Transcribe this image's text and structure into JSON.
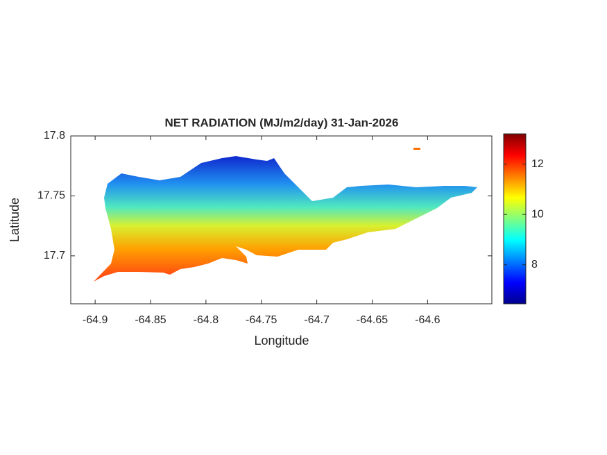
{
  "chart_data": {
    "type": "map",
    "title": "NET RADIATION (MJ/m2/day) 31-Jan-2026",
    "xlabel": "Longitude",
    "ylabel": "Latitude",
    "xlim": [
      -64.922,
      -64.542
    ],
    "xticks": [
      -64.9,
      -64.85,
      -64.8,
      -64.75,
      -64.7,
      -64.65,
      -64.6
    ],
    "ylim": [
      17.66,
      17.8
    ],
    "yticks": [
      17.7,
      17.75,
      17.8
    ],
    "colormap": "jet",
    "colorbar": {
      "lim": [
        6.45,
        13.2
      ],
      "ticks": [
        8,
        10,
        12
      ]
    }
  }
}
